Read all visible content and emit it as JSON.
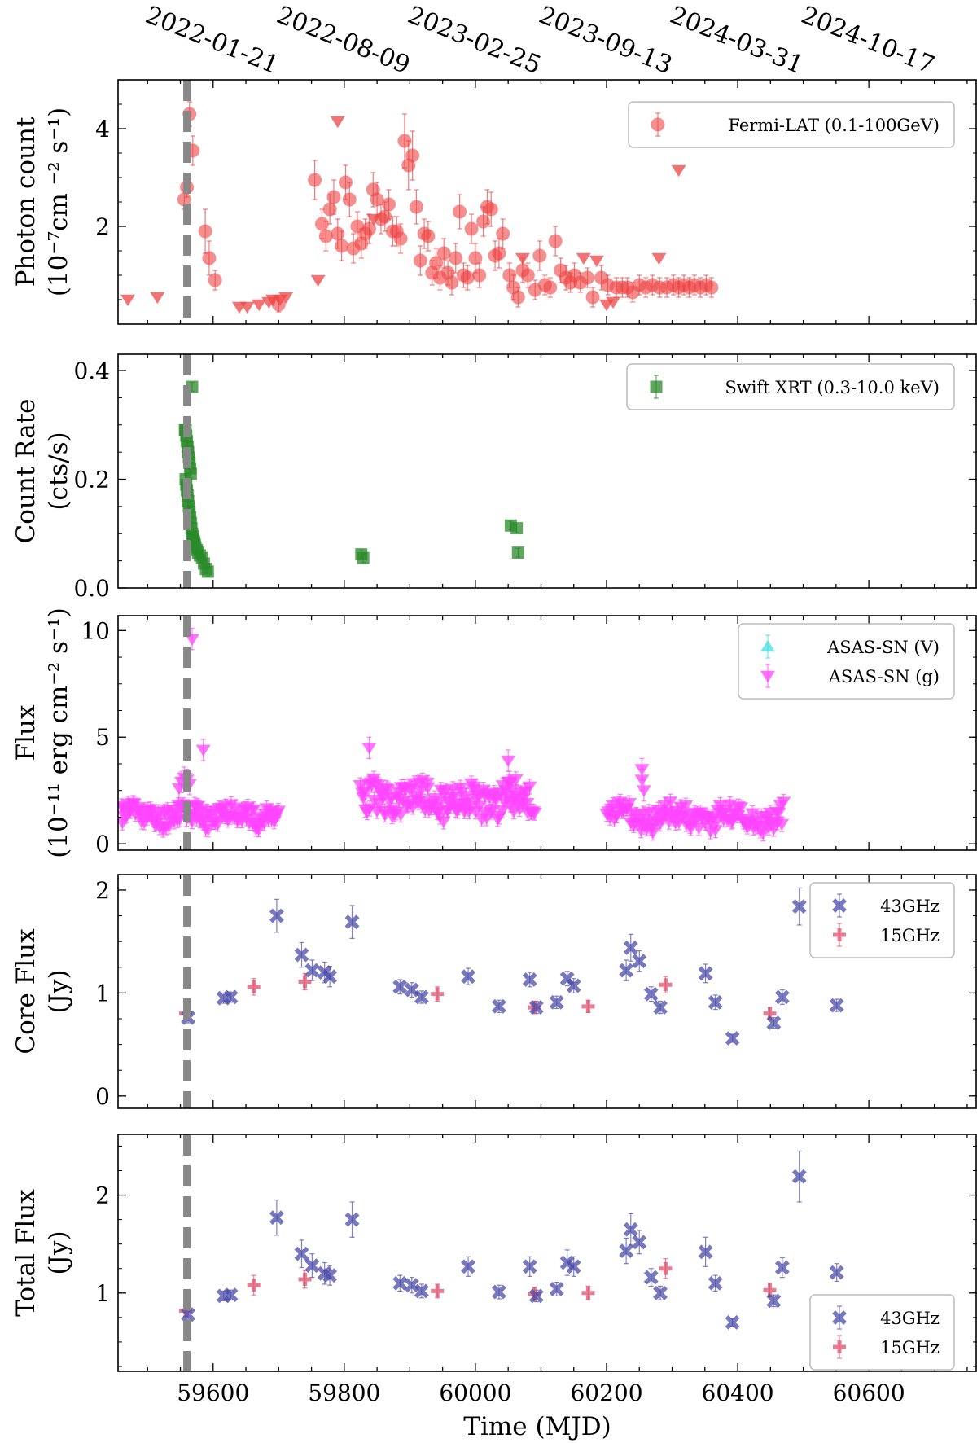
{
  "figure": {
    "xlabel": "Time (MJD)",
    "x_ticks": [
      59600,
      59800,
      60000,
      60200,
      60400,
      60600
    ],
    "xlim": [
      59455,
      60765
    ],
    "top_axis_dates": [
      {
        "mjd": 59600,
        "label": "2022-01-21"
      },
      {
        "mjd": 59800,
        "label": "2022-08-09"
      },
      {
        "mjd": 60000,
        "label": "2023-02-25"
      },
      {
        "mjd": 60200,
        "label": "2023-09-13"
      },
      {
        "mjd": 60400,
        "label": "2024-03-31"
      },
      {
        "mjd": 60600,
        "label": "2024-10-17"
      }
    ],
    "flare_line_mjd": 59560,
    "colors": {
      "red": "#ee4444",
      "green": "#2a8a2a",
      "magenta": "#ff44ff",
      "cyan": "#44dddd",
      "blue": "#4b4baa",
      "pink": "#e0506e",
      "dash": "#888888"
    }
  },
  "chart_data": [
    {
      "type": "scatter",
      "panel": "fermi",
      "ylabel_line1": "Photon count",
      "ylabel_line2": "(10⁻⁷cm ⁻² s⁻¹)",
      "ylim": [
        0,
        5
      ],
      "y_ticks": [
        2,
        4
      ],
      "legend": [
        "Fermi-LAT (0.1-100GeV)"
      ],
      "series": [
        {
          "name": "Fermi-LAT (0.1-100GeV)",
          "marker": "circle",
          "x": [
            59556,
            59560,
            59564,
            59569,
            59588,
            59594,
            59603,
            59700,
            59755,
            59766,
            59772,
            59778,
            59784,
            59790,
            59796,
            59802,
            59808,
            59814,
            59820,
            59826,
            59832,
            59838,
            59844,
            59850,
            59856,
            59862,
            59868,
            59874,
            59880,
            59886,
            59892,
            59898,
            59904,
            59910,
            59916,
            59922,
            59928,
            59934,
            59940,
            59946,
            59952,
            59958,
            59964,
            59970,
            59976,
            59982,
            59988,
            59994,
            60000,
            60006,
            60012,
            60018,
            60024,
            60030,
            60036,
            60042,
            60052,
            60058,
            60065,
            60072,
            60080,
            60091,
            60098,
            60106,
            60114,
            60122,
            60130,
            60138,
            60145,
            60151,
            60160,
            60171,
            60179,
            60192,
            60202,
            60215,
            60224,
            60232,
            60240,
            60250,
            60260,
            60270,
            60281,
            60292,
            60302,
            60310,
            60318,
            60326,
            60334,
            60343,
            60352,
            60360
          ],
          "y": [
            2.55,
            2.8,
            4.3,
            3.55,
            1.9,
            1.35,
            0.9,
            0.4,
            2.95,
            2.05,
            1.8,
            2.35,
            2.6,
            1.85,
            1.6,
            2.9,
            2.55,
            1.55,
            2.0,
            1.65,
            1.85,
            1.95,
            2.75,
            2.55,
            2.15,
            2.2,
            2.45,
            1.9,
            1.9,
            1.75,
            3.75,
            3.25,
            3.45,
            2.4,
            1.3,
            1.85,
            1.8,
            1.05,
            1.25,
            0.95,
            1.45,
            1.05,
            0.85,
            1.35,
            2.3,
            1.0,
            0.95,
            1.95,
            1.35,
            1.0,
            2.1,
            2.4,
            2.35,
            1.4,
            1.45,
            1.85,
            1.0,
            0.75,
            0.55,
            1.1,
            1.0,
            0.7,
            1.4,
            0.8,
            0.75,
            1.7,
            1.1,
            0.95,
            0.85,
            1.0,
            0.85,
            0.95,
            0.55,
            0.95,
            0.8,
            0.75,
            0.75,
            0.75,
            0.65,
            0.8,
            0.75,
            0.8,
            0.75,
            0.75,
            0.8,
            0.75,
            0.8,
            0.75,
            0.8,
            0.75,
            0.8,
            0.75
          ],
          "yerr": [
            0.2,
            0.2,
            0.25,
            0.3,
            0.45,
            0.35,
            0.2,
            0.15,
            0.4,
            0.3,
            0.3,
            0.3,
            0.35,
            0.3,
            0.3,
            0.35,
            0.35,
            0.3,
            0.3,
            0.3,
            0.3,
            0.3,
            0.35,
            0.35,
            0.3,
            0.3,
            0.3,
            0.3,
            0.3,
            0.3,
            0.55,
            0.5,
            0.5,
            0.35,
            0.3,
            0.3,
            0.3,
            0.25,
            0.3,
            0.25,
            0.3,
            0.25,
            0.25,
            0.3,
            0.35,
            0.25,
            0.25,
            0.3,
            0.3,
            0.25,
            0.3,
            0.35,
            0.35,
            0.3,
            0.3,
            0.3,
            0.25,
            0.25,
            0.2,
            0.25,
            0.25,
            0.2,
            0.3,
            0.2,
            0.2,
            0.3,
            0.25,
            0.25,
            0.2,
            0.25,
            0.2,
            0.2,
            0.2,
            0.25,
            0.2,
            0.2,
            0.2,
            0.2,
            0.2,
            0.2,
            0.2,
            0.2,
            0.2,
            0.2,
            0.2,
            0.2,
            0.2,
            0.2,
            0.2,
            0.2,
            0.2,
            0.2
          ]
        },
        {
          "name": "Fermi-LAT upper limits",
          "marker": "triangle-down",
          "x": [
            59470,
            59515,
            59640,
            59652,
            59670,
            59685,
            59691,
            59702,
            59711,
            59760,
            59790,
            59845,
            60072,
            60165,
            60185,
            60200,
            60210,
            60280,
            60310
          ],
          "y": [
            0.5,
            0.55,
            0.35,
            0.35,
            0.4,
            0.45,
            0.5,
            0.5,
            0.55,
            0.9,
            4.15,
            2.15,
            1.35,
            1.35,
            1.3,
            0.4,
            0.45,
            1.35,
            3.15
          ]
        }
      ]
    },
    {
      "type": "scatter",
      "panel": "xrt",
      "ylabel_line1": "Count Rate",
      "ylabel_line2": "(cts/s)",
      "ylim": [
        0,
        0.43
      ],
      "y_ticks": [
        0.0,
        0.2,
        0.4
      ],
      "y_tick_labels": [
        "0.0",
        "0.2",
        "0.4"
      ],
      "legend": [
        "Swift XRT (0.3-10.0 keV)"
      ],
      "series": [
        {
          "name": "Swift XRT (0.3-10.0 keV)",
          "marker": "square",
          "x": [
            59558,
            59559,
            59560,
            59561,
            59562,
            59563,
            59564,
            59565,
            59566,
            59557,
            59558,
            59559,
            59560,
            59561,
            59562,
            59563,
            59564,
            59565,
            59566,
            59567,
            59568,
            59569,
            59570,
            59571,
            59572,
            59573,
            59575,
            59577,
            59580,
            59583,
            59586,
            59589,
            59592,
            59826,
            59829,
            60054,
            60063,
            60065
          ],
          "y": [
            0.29,
            0.28,
            0.27,
            0.26,
            0.25,
            0.24,
            0.23,
            0.22,
            0.21,
            0.29,
            0.2,
            0.19,
            0.18,
            0.17,
            0.16,
            0.15,
            0.14,
            0.13,
            0.12,
            0.11,
            0.1,
            0.095,
            0.09,
            0.085,
            0.08,
            0.075,
            0.07,
            0.065,
            0.06,
            0.055,
            0.045,
            0.035,
            0.03,
            0.062,
            0.055,
            0.115,
            0.11,
            0.065
          ]
        },
        {
          "name": "Swift XRT outlier",
          "marker": "square",
          "x": [
            59568
          ],
          "y": [
            0.37
          ]
        }
      ]
    },
    {
      "type": "scatter",
      "panel": "asassn",
      "ylabel_line1": "Flux",
      "ylabel_line2": "(10⁻¹¹ erg cm⁻² s⁻¹)",
      "ylim": [
        -0.3,
        10.7
      ],
      "y_ticks": [
        0,
        5,
        10
      ],
      "legend": [
        "ASAS-SN (V)",
        "ASAS-SN (g)"
      ],
      "series": [
        {
          "name": "ASAS-SN (V)",
          "marker": "triangle-up",
          "x": [],
          "y": []
        },
        {
          "name": "ASAS-SN (g)",
          "marker": "triangle-down",
          "segments": [
            {
              "x0": 59460,
              "x1": 59700,
              "n": 120,
              "seed": 11,
              "center": 1.35,
              "amp": 0.5
            },
            {
              "x0": 59825,
              "x1": 60090,
              "n": 140,
              "seed": 23,
              "center": 2.05,
              "amp": 0.8
            },
            {
              "x0": 60200,
              "x1": 60470,
              "n": 120,
              "seed": 37,
              "center": 1.25,
              "amp": 0.55
            }
          ],
          "x": [
            59548,
            59552,
            59556,
            59560,
            59564,
            59568,
            59585,
            59838,
            60050,
            60052,
            60056,
            60254,
            60254,
            60257
          ],
          "y": [
            2.6,
            2.9,
            3.1,
            3.0,
            2.8,
            9.6,
            4.4,
            4.5,
            3.9,
            2.9,
            2.0,
            3.5,
            3.0,
            2.5
          ]
        }
      ]
    },
    {
      "type": "scatter",
      "panel": "core",
      "ylabel_line1": "Core Flux",
      "ylabel_line2": "(Jy)",
      "ylim": [
        -0.12,
        2.15
      ],
      "y_ticks": [
        0,
        1,
        2
      ],
      "legend": [
        "43GHz",
        "15GHz"
      ],
      "series": [
        {
          "name": "43GHz",
          "marker": "x",
          "x": [
            59562,
            59616,
            59627,
            59697,
            59735,
            59751,
            59770,
            59778,
            59812,
            59885,
            59903,
            59918,
            59989,
            60036,
            60083,
            60093,
            60124,
            60140,
            60150,
            60230,
            60237,
            60250,
            60268,
            60282,
            60351,
            60366,
            60392,
            60455,
            60468,
            60494,
            60551
          ],
          "y": [
            0.76,
            0.95,
            0.96,
            1.75,
            1.37,
            1.22,
            1.2,
            1.16,
            1.69,
            1.06,
            1.03,
            0.96,
            1.16,
            0.87,
            1.13,
            0.86,
            0.91,
            1.14,
            1.07,
            1.22,
            1.44,
            1.31,
            0.99,
            0.86,
            1.19,
            0.91,
            0.56,
            0.71,
            0.96,
            1.84,
            0.88
          ],
          "yerr": [
            0.05,
            0.05,
            0.05,
            0.16,
            0.12,
            0.1,
            0.1,
            0.1,
            0.16,
            0.07,
            0.07,
            0.06,
            0.08,
            0.06,
            0.07,
            0.06,
            0.06,
            0.07,
            0.07,
            0.1,
            0.13,
            0.1,
            0.07,
            0.06,
            0.09,
            0.07,
            0.04,
            0.05,
            0.07,
            0.18,
            0.06
          ]
        },
        {
          "name": "15GHz",
          "marker": "plus",
          "x": [
            59558,
            59662,
            59740,
            59942,
            60090,
            60172,
            60290,
            60449
          ],
          "y": [
            0.8,
            1.06,
            1.11,
            0.99,
            0.86,
            0.87,
            1.08,
            0.8
          ],
          "yerr": [
            0.06,
            0.08,
            0.08,
            0.07,
            0.06,
            0.06,
            0.08,
            0.06
          ]
        }
      ]
    },
    {
      "type": "scatter",
      "panel": "total",
      "ylabel_line1": "Total Flux",
      "ylabel_line2": "(Jy)",
      "ylim": [
        0.2,
        2.62
      ],
      "y_ticks": [
        1,
        2
      ],
      "legend": [
        "43GHz",
        "15GHz"
      ],
      "series": [
        {
          "name": "43GHz",
          "marker": "x",
          "x": [
            59562,
            59616,
            59627,
            59697,
            59735,
            59751,
            59770,
            59778,
            59812,
            59885,
            59903,
            59918,
            59989,
            60036,
            60083,
            60093,
            60124,
            60140,
            60150,
            60230,
            60237,
            60250,
            60268,
            60282,
            60351,
            60366,
            60392,
            60455,
            60468,
            60494,
            60551
          ],
          "y": [
            0.78,
            0.97,
            0.98,
            1.77,
            1.4,
            1.28,
            1.2,
            1.18,
            1.75,
            1.1,
            1.08,
            1.02,
            1.27,
            1.01,
            1.27,
            0.97,
            1.04,
            1.31,
            1.27,
            1.43,
            1.65,
            1.52,
            1.16,
            1.0,
            1.42,
            1.1,
            0.7,
            0.92,
            1.26,
            2.19,
            1.21
          ],
          "yerr": [
            0.05,
            0.05,
            0.05,
            0.18,
            0.14,
            0.12,
            0.11,
            0.1,
            0.18,
            0.08,
            0.08,
            0.07,
            0.1,
            0.07,
            0.1,
            0.06,
            0.07,
            0.13,
            0.1,
            0.13,
            0.16,
            0.12,
            0.09,
            0.07,
            0.15,
            0.08,
            0.04,
            0.06,
            0.1,
            0.26,
            0.09
          ]
        },
        {
          "name": "15GHz",
          "marker": "plus",
          "x": [
            59558,
            59662,
            59740,
            59942,
            60090,
            60172,
            60290,
            60449
          ],
          "y": [
            0.82,
            1.08,
            1.14,
            1.02,
            0.99,
            1.0,
            1.25,
            1.03
          ],
          "yerr": [
            0.06,
            0.1,
            0.09,
            0.07,
            0.07,
            0.07,
            0.1,
            0.07
          ]
        }
      ]
    }
  ]
}
